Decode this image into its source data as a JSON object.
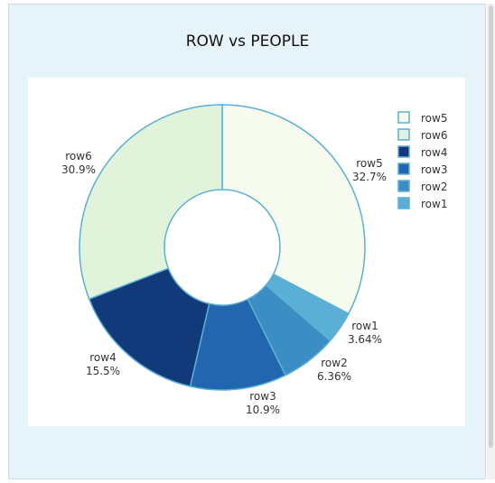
{
  "page": {
    "title": "ROW vs PEOPLE"
  },
  "chart_data": {
    "type": "pie",
    "hole": true,
    "title": "ROW vs PEOPLE",
    "legend_position": "top-right",
    "slices": [
      {
        "label": "row5",
        "percent": 32.7,
        "percent_text": "32.7%",
        "color": "#f7fbef"
      },
      {
        "label": "row1",
        "percent": 3.64,
        "percent_text": "3.64%",
        "color": "#5bafd6"
      },
      {
        "label": "row2",
        "percent": 6.36,
        "percent_text": "6.36%",
        "color": "#3c8dc4"
      },
      {
        "label": "row3",
        "percent": 10.9,
        "percent_text": "10.9%",
        "color": "#2166ae"
      },
      {
        "label": "row4",
        "percent": 15.5,
        "percent_text": "15.5%",
        "color": "#123a7b"
      },
      {
        "label": "row6",
        "percent": 30.9,
        "percent_text": "30.9%",
        "color": "#e2f3dc"
      }
    ],
    "legend": [
      "row5",
      "row6",
      "row4",
      "row3",
      "row2",
      "row1"
    ],
    "stroke_color": "#5cb0d4"
  }
}
